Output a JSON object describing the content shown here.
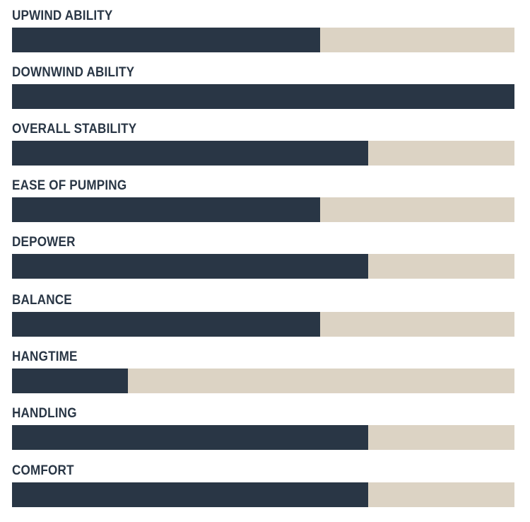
{
  "chart_data": {
    "type": "bar",
    "orientation": "horizontal",
    "categories": [
      "UPWIND ABILITY",
      "DOWNWIND ABILITY",
      "OVERALL STABILITY",
      "EASE OF PUMPING",
      "DEPOWER",
      "BALANCE",
      "HANGTIME",
      "HANDLING",
      "COMFORT"
    ],
    "values": [
      0.613,
      1.0,
      0.709,
      0.613,
      0.709,
      0.613,
      0.231,
      0.709,
      0.709
    ],
    "xlim": [
      0,
      1
    ],
    "colors": {
      "fill": "#293645",
      "track": "#dcd3c4"
    }
  }
}
